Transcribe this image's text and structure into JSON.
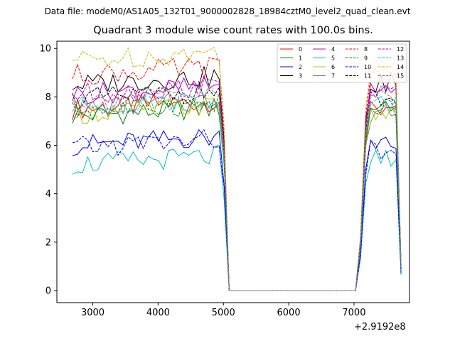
{
  "suptitle": "Data file: modeM0/AS1A05_132T01_9000002828_18984cztM0_level2_quad_clean.evt",
  "offset_label": "+2.9192e8",
  "chart_data": {
    "type": "line",
    "title": "Quadrant 3 module wise count rates with 100.0s bins.",
    "xlabel": "",
    "ylabel": "",
    "xlim": [
      2450,
      7850
    ],
    "ylim": [
      -0.5,
      10.3
    ],
    "x_ticks": [
      3000,
      4000,
      5000,
      6000,
      7000
    ],
    "x_tick_labels": [
      "3000",
      "4000",
      "5000",
      "6000",
      "7000"
    ],
    "y_ticks": [
      0,
      2,
      4,
      6,
      8,
      10
    ],
    "y_tick_labels": [
      "0",
      "2",
      "4",
      "6",
      "8",
      "10"
    ],
    "x_offset": "+2.9192e8",
    "grid": false,
    "legend_placement": "top-right",
    "legend_columns": 4,
    "x": [
      2690,
      2767,
      2845,
      2922,
      3000,
      3077,
      3154,
      3232,
      3309,
      3387,
      3464,
      3541,
      3619,
      3696,
      3774,
      3851,
      3928,
      4006,
      4083,
      4160,
      4238,
      4315,
      4393,
      4470,
      4547,
      4625,
      4702,
      4780,
      4857,
      4934,
      5012,
      5089,
      5167,
      5244,
      5321,
      5399,
      5476,
      5554,
      5631,
      5708,
      5786,
      5863,
      5940,
      6018,
      6095,
      6173,
      6250,
      6327,
      6405,
      6482,
      6560,
      6637,
      6714,
      6792,
      6869,
      6946,
      7024,
      7101,
      7179,
      7256,
      7333,
      7411,
      7488,
      7566,
      7643,
      7720
    ],
    "series": [
      {
        "name": "0",
        "color": "#ff0000",
        "dash": "solid",
        "base": 7.5,
        "peak": 7.6
      },
      {
        "name": "1",
        "color": "#008000",
        "dash": "solid",
        "base": 7.2,
        "peak": 7.5
      },
      {
        "name": "2",
        "color": "#0000ff",
        "dash": "solid",
        "base": 6.0,
        "peak": 6.1
      },
      {
        "name": "3",
        "color": "#000000",
        "dash": "solid",
        "base": 8.5,
        "peak": 8.6
      },
      {
        "name": "4",
        "color": "#bf00bf",
        "dash": "solid",
        "base": 8.1,
        "peak": 8.3
      },
      {
        "name": "5",
        "color": "#00bfbf",
        "dash": "solid",
        "base": 5.2,
        "peak": 5.4
      },
      {
        "name": "6",
        "color": "#bfbf00",
        "dash": "solid",
        "base": 7.3,
        "peak": 7.2
      },
      {
        "name": "7",
        "color": "#808080",
        "dash": "solid",
        "base": 7.5,
        "peak": 7.3
      },
      {
        "name": "8",
        "color": "#ff0000",
        "dash": "dashed",
        "base": 8.9,
        "peak": 8.8
      },
      {
        "name": "9",
        "color": "#008000",
        "dash": "dashed",
        "base": 7.4,
        "peak": 7.5
      },
      {
        "name": "10",
        "color": "#0000ff",
        "dash": "dashed",
        "base": 5.9,
        "peak": 5.8
      },
      {
        "name": "11",
        "color": "#000000",
        "dash": "dashed",
        "base": 7.9,
        "peak": 8.0
      },
      {
        "name": "12",
        "color": "#bf00bf",
        "dash": "dashed",
        "base": 8.1,
        "peak": 8.3
      },
      {
        "name": "13",
        "color": "#00bfbf",
        "dash": "dashed",
        "base": 7.6,
        "peak": 7.7
      },
      {
        "name": "14",
        "color": "#bfbf00",
        "dash": "dashed",
        "base": 9.5,
        "peak": 9.2
      },
      {
        "name": "15",
        "color": "#808080",
        "dash": "dashed",
        "base": 7.8,
        "peak": 7.9
      }
    ]
  }
}
